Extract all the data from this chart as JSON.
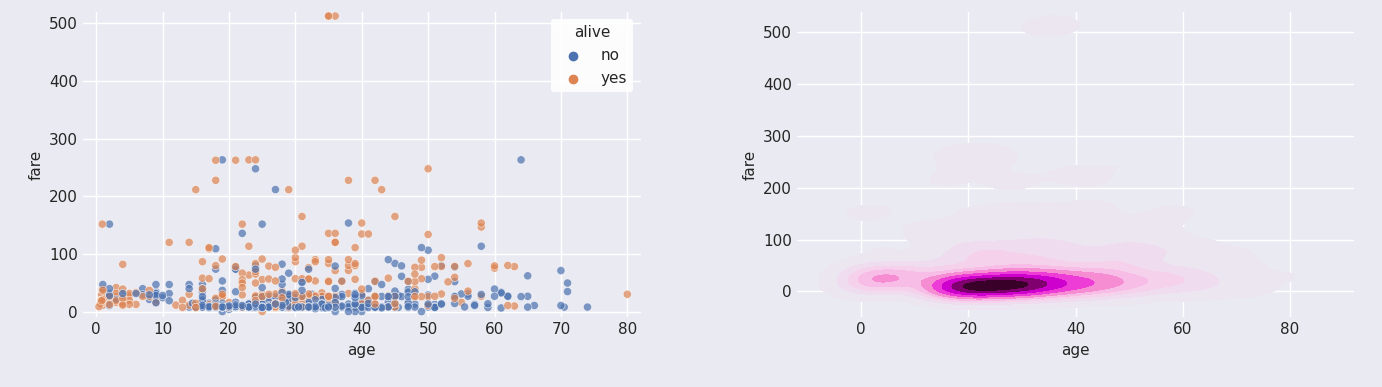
{
  "scatter_color_no": "#4c72b0",
  "scatter_color_yes": "#dd8452",
  "background_color": "#eaeaf2",
  "grid_color": "white",
  "fig_facecolor": "#eaeaf2",
  "scatter_xlim": [
    -2,
    82
  ],
  "scatter_ylim": [
    -10,
    520
  ],
  "kde_xlim": [
    -12,
    92
  ],
  "kde_ylim": [
    -50,
    540
  ],
  "xlabel": "age",
  "ylabel": "fare",
  "legend_title": "alive",
  "legend_labels": [
    "no",
    "yes"
  ],
  "scatter_alpha": 0.7,
  "scatter_size": 35,
  "font_size": 11,
  "kde_levels": 10,
  "kde_thresh": 0.02,
  "kde_bw_adjust": 0.8
}
